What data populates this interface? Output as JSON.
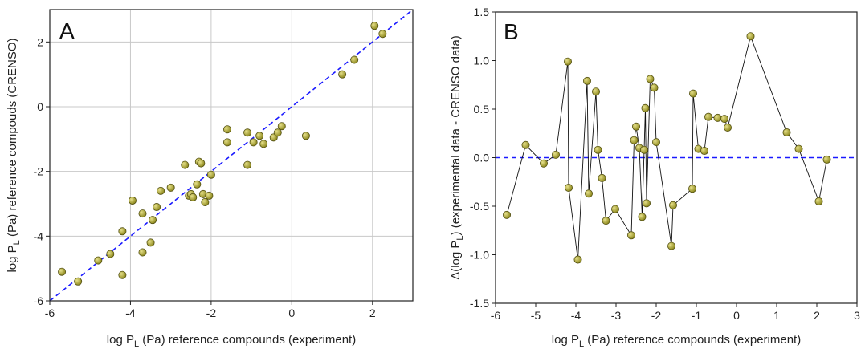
{
  "colors": {
    "marker": "#8f8a1f",
    "marker_highlight": "#e6e08a",
    "marker_edge": "#555214",
    "reference_line": "#1a1aff",
    "grid": "#c8c8c8",
    "connector": "#111111"
  },
  "chart_data": [
    {
      "type": "scatter",
      "panel_label": "A",
      "xlabel_parts": [
        "log P",
        "L",
        " (Pa) reference compounds (experiment)"
      ],
      "ylabel_parts": [
        "log P",
        "L",
        " (Pa) reference compouds (CRENSO)"
      ],
      "xlim": [
        -6,
        3
      ],
      "ylim": [
        -6,
        3
      ],
      "xticks": [
        -6,
        -4,
        -2,
        0,
        2
      ],
      "yticks": [
        -6,
        -4,
        -2,
        0,
        2
      ],
      "x_tick_labels": [
        "-6",
        "-4",
        "-2",
        "0",
        "2"
      ],
      "y_tick_labels": [
        "-6",
        "-4",
        "-2",
        "0",
        "2"
      ],
      "grid": true,
      "reference_line": {
        "style": "dashed",
        "points": [
          [
            -6,
            -6
          ],
          [
            3,
            3
          ]
        ]
      },
      "points": [
        [
          -5.7,
          -5.1
        ],
        [
          -5.3,
          -5.4
        ],
        [
          -4.8,
          -4.75
        ],
        [
          -4.5,
          -4.55
        ],
        [
          -4.2,
          -3.85
        ],
        [
          -4.2,
          -5.2
        ],
        [
          -3.95,
          -2.9
        ],
        [
          -3.7,
          -3.3
        ],
        [
          -3.7,
          -4.5
        ],
        [
          -3.5,
          -4.2
        ],
        [
          -3.45,
          -3.5
        ],
        [
          -3.35,
          -3.1
        ],
        [
          -3.25,
          -2.6
        ],
        [
          -3.0,
          -2.5
        ],
        [
          -2.65,
          -1.8
        ],
        [
          -2.55,
          -2.75
        ],
        [
          -2.5,
          -2.7
        ],
        [
          -2.45,
          -2.8
        ],
        [
          -2.35,
          -2.4
        ],
        [
          -2.3,
          -1.7
        ],
        [
          -2.25,
          -1.75
        ],
        [
          -2.2,
          -2.7
        ],
        [
          -2.15,
          -2.95
        ],
        [
          -2.05,
          -2.75
        ],
        [
          -2.0,
          -2.1
        ],
        [
          -1.6,
          -0.7
        ],
        [
          -1.6,
          -1.1
        ],
        [
          -1.1,
          -0.8
        ],
        [
          -1.1,
          -1.8
        ],
        [
          -0.95,
          -1.1
        ],
        [
          -0.8,
          -0.9
        ],
        [
          -0.7,
          -1.15
        ],
        [
          -0.45,
          -0.95
        ],
        [
          -0.35,
          -0.8
        ],
        [
          -0.25,
          -0.6
        ],
        [
          0.35,
          -0.9
        ],
        [
          1.25,
          1.0
        ],
        [
          1.55,
          1.45
        ],
        [
          2.05,
          2.5
        ],
        [
          2.25,
          2.25
        ]
      ]
    },
    {
      "type": "line",
      "panel_label": "B",
      "xlabel_parts": [
        "log P",
        "L",
        " (Pa) reference compounds (experiment)"
      ],
      "ylabel_parts": [
        "Δ(log P",
        "L",
        ") (experimental data - CRENSO data)"
      ],
      "xlim": [
        -6,
        3
      ],
      "ylim": [
        -1.5,
        1.5
      ],
      "xticks": [
        -6,
        -5,
        -4,
        -3,
        -2,
        -1,
        0,
        1,
        2,
        3
      ],
      "yticks": [
        -1.5,
        -1.0,
        -0.5,
        0.0,
        0.5,
        1.0,
        1.5
      ],
      "x_tick_labels": [
        "-6",
        "-5",
        "-4",
        "-3",
        "-2",
        "-1",
        "0",
        "1",
        "2",
        "3"
      ],
      "y_tick_labels": [
        "-1.5",
        "-1.0",
        "-0.5",
        "0.0",
        "0.5",
        "1.0",
        "1.5"
      ],
      "grid": false,
      "reference_line": {
        "style": "dashed",
        "y": 0.0
      },
      "points": [
        [
          -5.72,
          -0.59
        ],
        [
          -5.25,
          0.13
        ],
        [
          -4.8,
          -0.06
        ],
        [
          -4.5,
          0.03
        ],
        [
          -4.2,
          0.99
        ],
        [
          -4.18,
          -0.31
        ],
        [
          -3.95,
          -1.05
        ],
        [
          -3.72,
          0.79
        ],
        [
          -3.68,
          -0.37
        ],
        [
          -3.5,
          0.68
        ],
        [
          -3.45,
          0.08
        ],
        [
          -3.35,
          -0.21
        ],
        [
          -3.25,
          -0.65
        ],
        [
          -3.02,
          -0.53
        ],
        [
          -2.62,
          -0.8
        ],
        [
          -2.55,
          0.18
        ],
        [
          -2.5,
          0.32
        ],
        [
          -2.42,
          0.1
        ],
        [
          -2.35,
          -0.61
        ],
        [
          -2.3,
          0.08
        ],
        [
          -2.27,
          0.51
        ],
        [
          -2.24,
          -0.47
        ],
        [
          -2.15,
          0.81
        ],
        [
          -2.05,
          0.72
        ],
        [
          -2.0,
          0.16
        ],
        [
          -1.62,
          -0.91
        ],
        [
          -1.58,
          -0.49
        ],
        [
          -1.1,
          -0.32
        ],
        [
          -1.08,
          0.66
        ],
        [
          -0.95,
          0.09
        ],
        [
          -0.8,
          0.07
        ],
        [
          -0.7,
          0.42
        ],
        [
          -0.47,
          0.41
        ],
        [
          -0.3,
          0.4
        ],
        [
          -0.22,
          0.31
        ],
        [
          0.35,
          1.25
        ],
        [
          1.25,
          0.26
        ],
        [
          1.55,
          0.09
        ],
        [
          2.05,
          -0.45
        ],
        [
          2.25,
          -0.02
        ]
      ]
    }
  ]
}
